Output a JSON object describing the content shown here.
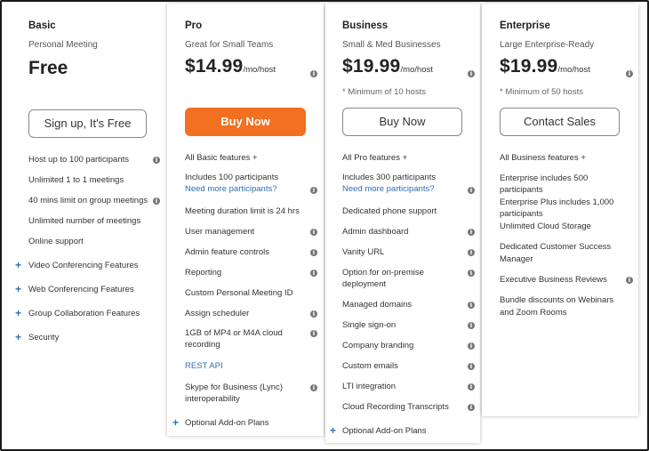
{
  "colors": {
    "accent": "#f2701f",
    "link": "#2f6fb3"
  },
  "plans": {
    "basic": {
      "title": "Basic",
      "subtitle": "Personal Meeting",
      "price": "Free",
      "button": "Sign up, It's Free",
      "features": [
        "Host up to 100 participants",
        "Unlimited 1 to 1 meetings",
        "40 mins limit on group meetings",
        "Unlimited number of meetings",
        "Online support"
      ],
      "expanders": [
        "Video Conferencing Features",
        "Web Conferencing Features",
        "Group Collaboration Features",
        "Security"
      ]
    },
    "pro": {
      "title": "Pro",
      "subtitle": "Great for Small Teams",
      "price": "$14.99",
      "price_unit": "/mo/host",
      "button": "Buy Now",
      "features_header": "All Basic features +",
      "features": [
        "Includes 100 participants",
        "Need more participants?",
        "Meeting duration limit is 24 hrs",
        "User management",
        "Admin feature controls",
        "Reporting",
        "Custom Personal Meeting ID",
        "Assign scheduler",
        "1GB of MP4 or M4A cloud",
        "recording",
        "REST API",
        "Skype for Business (Lync)",
        "interoperability"
      ],
      "expander": "Optional Add-on Plans"
    },
    "business": {
      "title": "Business",
      "subtitle": "Small & Med Businesses",
      "price": "$19.99",
      "price_unit": "/mo/host",
      "note": "* Minimum of 10 hosts",
      "button": "Buy Now",
      "features_header": "All Pro features +",
      "features": [
        "Includes 300 participants",
        "Need more participants?",
        "Dedicated phone support",
        "Admin dashboard",
        "Vanity URL",
        "Option for on-premise",
        "deployment",
        "Managed domains",
        "Single sign-on",
        "Company branding",
        "Custom emails",
        "LTI integration",
        "Cloud Recording Transcripts"
      ],
      "expander": "Optional Add-on Plans"
    },
    "enterprise": {
      "title": "Enterprise",
      "subtitle": "Large Enterprise-Ready",
      "price": "$19.99",
      "price_unit": "/mo/host",
      "note": "* Minimum of 50 hosts",
      "button": "Contact Sales",
      "features_header": "All Business features +",
      "features": [
        "Enterprise includes 500",
        "participants",
        "Enterprise Plus includes 1,000",
        "participants",
        "Unlimited Cloud Storage",
        "Dedicated Customer Success",
        "Manager",
        "Executive Business Reviews",
        "Bundle discounts on Webinars",
        "and Zoom Rooms"
      ]
    }
  }
}
